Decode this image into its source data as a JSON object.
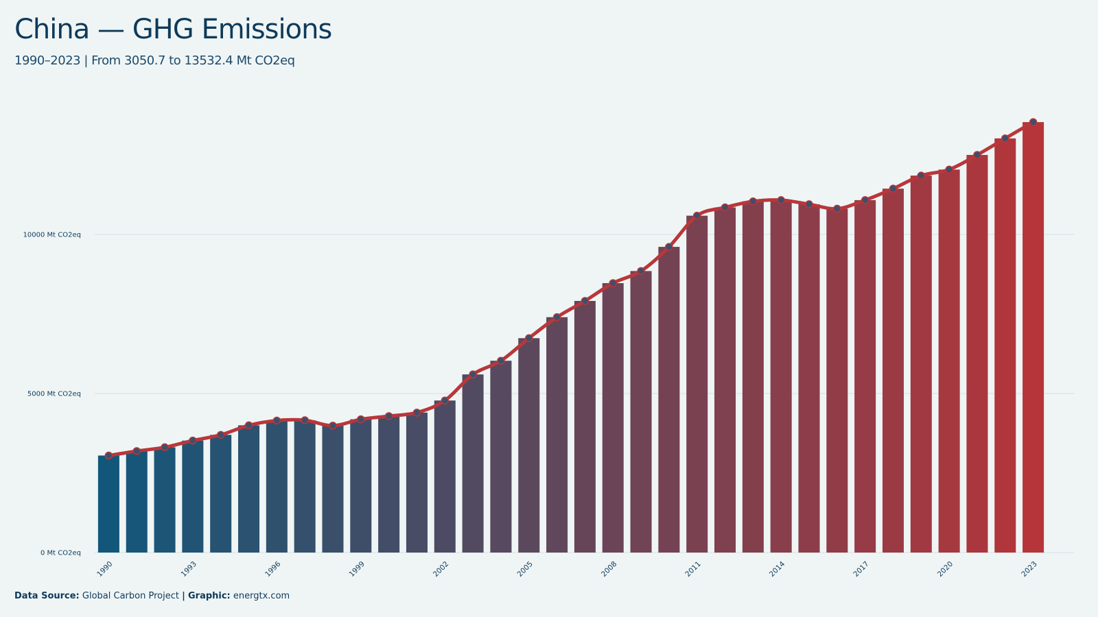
{
  "title": "China — GHG Emissions",
  "subtitle": "1990–2023 | From 3050.7 to 13532.4 Mt CO2eq",
  "footer": {
    "source_label": "Data Source:",
    "source_value": "Global Carbon Project",
    "separator": "|",
    "graphic_label": "Graphic:",
    "graphic_value": "energtx.com"
  },
  "colors": {
    "background": "#eff5f5",
    "bar_start": "#12577a",
    "bar_end": "#b5353a",
    "line": "#b8373b",
    "marker_fill": "#3e4f6b",
    "grid": "#d5e1e3",
    "text": "#0e3a5a"
  },
  "chart_data": {
    "type": "bar",
    "overlay": "line with markers",
    "unit": "Mt CO2eq",
    "x": [
      1990,
      1991,
      1992,
      1993,
      1994,
      1995,
      1996,
      1997,
      1998,
      1999,
      2000,
      2001,
      2002,
      2003,
      2004,
      2005,
      2006,
      2007,
      2008,
      2009,
      2010,
      2011,
      2012,
      2013,
      2014,
      2015,
      2016,
      2017,
      2018,
      2019,
      2020,
      2021,
      2022,
      2023
    ],
    "values": [
      3050.7,
      3190,
      3310,
      3520,
      3700,
      4000,
      4150,
      4160,
      3990,
      4190,
      4290,
      4400,
      4780,
      5600,
      6030,
      6740,
      7400,
      7910,
      8470,
      8850,
      9610,
      10590,
      10850,
      11040,
      11080,
      10950,
      10810,
      11080,
      11440,
      11850,
      12040,
      12500,
      13020,
      13532.4
    ],
    "xticks": [
      "1990",
      "1993",
      "1996",
      "1999",
      "2002",
      "2005",
      "2008",
      "2011",
      "2014",
      "2017",
      "2020",
      "2023"
    ],
    "yticks": [
      0,
      5000,
      10000
    ],
    "ytick_labels": [
      "0 Mt CO2eq",
      "5000 Mt CO2eq",
      "10000 Mt CO2eq"
    ],
    "ylim": [
      0,
      14500
    ],
    "grid": "horizontal",
    "xlabel": "",
    "ylabel": ""
  }
}
